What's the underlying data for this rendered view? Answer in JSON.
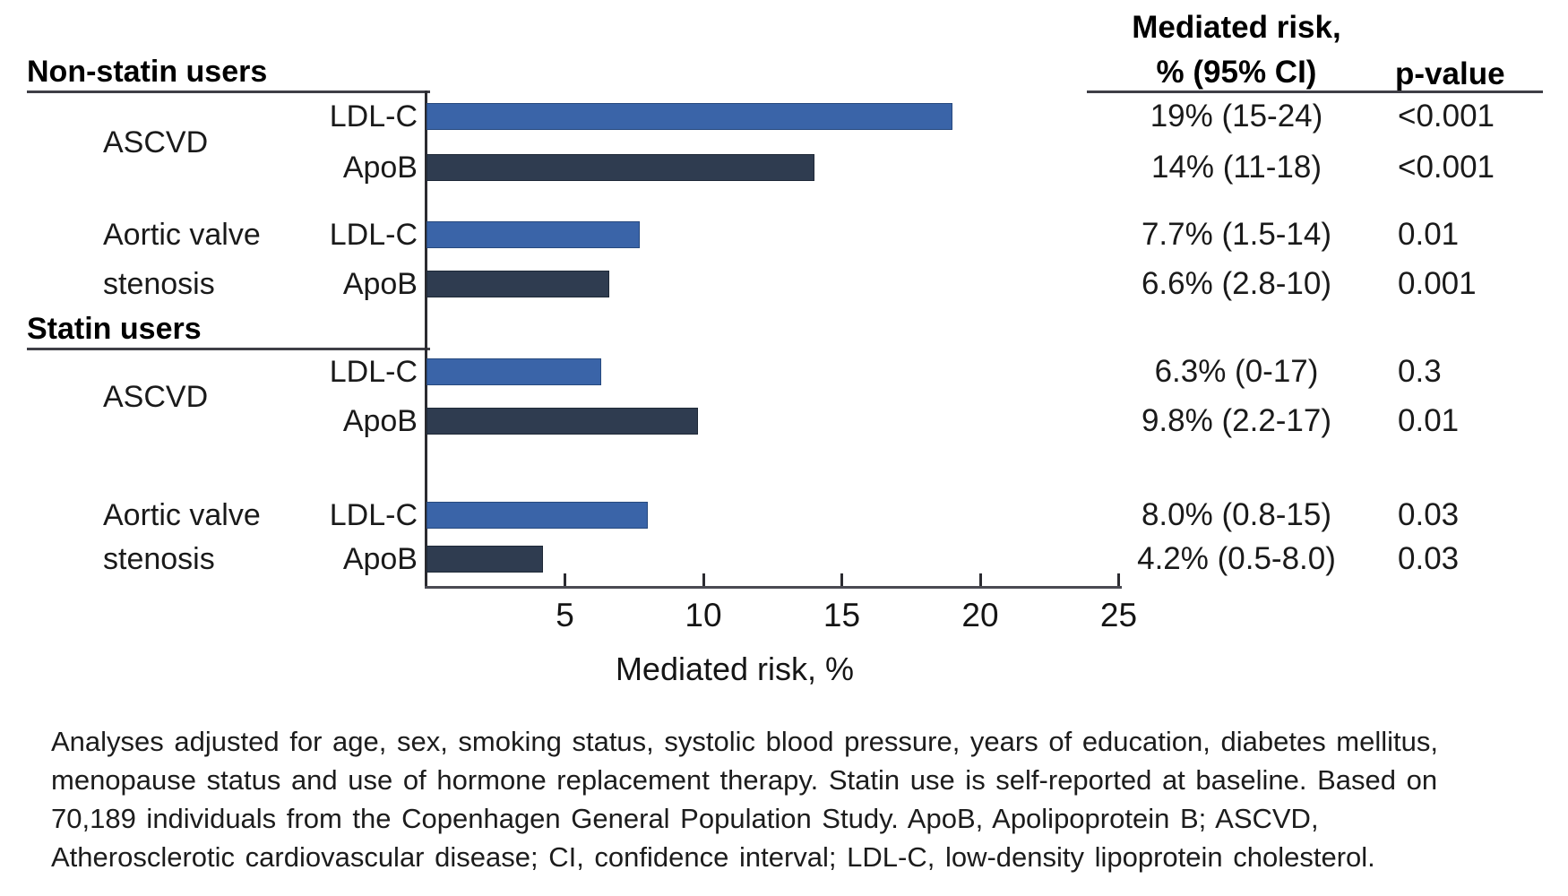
{
  "table_header": {
    "line1": "Mediated risk,",
    "line2": "% (95% CI)",
    "p_label": "p-value"
  },
  "chart_data": {
    "type": "bar",
    "orientation": "horizontal",
    "xlabel": "Mediated risk, %",
    "xlim": [
      0,
      25
    ],
    "xticks": [
      "5",
      "10",
      "15",
      "20",
      "25"
    ],
    "grid": false,
    "legend_position": "none",
    "colors": {
      "LDL-C": "#3a64a8",
      "ApoB": "#2f3c50"
    },
    "sections": [
      {
        "label": "Non-statin users",
        "groups": [
          {
            "outcome": "ASCVD",
            "outcome_lines": [
              "ASCVD"
            ],
            "bars": [
              {
                "series": "LDL-C",
                "value": 19,
                "mediated_risk": "19% (15-24)",
                "p_value": "<0.001"
              },
              {
                "series": "ApoB",
                "value": 14,
                "mediated_risk": "14% (11-18)",
                "p_value": "<0.001"
              }
            ]
          },
          {
            "outcome": "Aortic valve stenosis",
            "outcome_lines": [
              "Aortic valve",
              "stenosis"
            ],
            "bars": [
              {
                "series": "LDL-C",
                "value": 7.7,
                "mediated_risk": "7.7% (1.5-14)",
                "p_value": "0.01"
              },
              {
                "series": "ApoB",
                "value": 6.6,
                "mediated_risk": "6.6% (2.8-10)",
                "p_value": "0.001"
              }
            ]
          }
        ]
      },
      {
        "label": "Statin users",
        "groups": [
          {
            "outcome": "ASCVD",
            "outcome_lines": [
              "ASCVD"
            ],
            "bars": [
              {
                "series": "LDL-C",
                "value": 6.3,
                "mediated_risk": "6.3% (0-17)",
                "p_value": "0.3"
              },
              {
                "series": "ApoB",
                "value": 9.8,
                "mediated_risk": "9.8% (2.2-17)",
                "p_value": "0.01"
              }
            ]
          },
          {
            "outcome": "Aortic valve stenosis",
            "outcome_lines": [
              "Aortic valve",
              "stenosis"
            ],
            "bars": [
              {
                "series": "LDL-C",
                "value": 8.0,
                "mediated_risk": "8.0% (0.8-15)",
                "p_value": "0.03"
              },
              {
                "series": "ApoB",
                "value": 4.2,
                "mediated_risk": "4.2% (0.5-8.0)",
                "p_value": "0.03"
              }
            ]
          }
        ]
      }
    ]
  },
  "footnote": {
    "lines": [
      "Analyses adjusted for age, sex, smoking status, systolic blood pressure, years of education, diabetes mellitus,",
      "menopause status and use of hormone replacement therapy. Statin use is self-reported at baseline. Based on",
      "70,189 individuals from the Copenhagen General Population Study. ApoB, Apolipoprotein B; ASCVD,",
      "Atherosclerotic cardiovascular disease; CI, confidence interval; LDL-C, low-density lipoprotein cholesterol."
    ]
  }
}
